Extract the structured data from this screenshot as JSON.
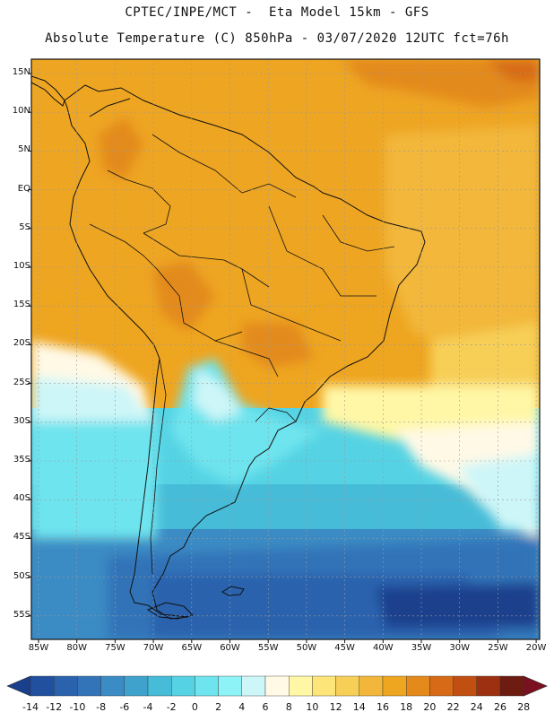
{
  "header": {
    "line1": "CPTEC/INPE/MCT -  Eta Model 15km - GFS",
    "line2": "Absolute Temperature (C) 850hPa - 03/07/2020 12UTC fct=76h"
  },
  "map": {
    "lat_labels": [
      "15N",
      "10N",
      "5N",
      "EQ",
      "5S",
      "10S",
      "15S",
      "20S",
      "25S",
      "30S",
      "35S",
      "40S",
      "45S",
      "50S",
      "55S"
    ],
    "lon_labels": [
      "85W",
      "80W",
      "75W",
      "70W",
      "65W",
      "60W",
      "55W",
      "50W",
      "45W",
      "40W",
      "35W",
      "30W",
      "25W",
      "20W"
    ],
    "colors": {
      "c_m14": "#1a3f8c",
      "c_m12": "#21519e",
      "c_m10": "#2a62ad",
      "c_m8": "#3373b8",
      "c_m6": "#3b8bc4",
      "c_m4": "#3fa2cc",
      "c_m2": "#47bcd8",
      "c_0": "#55d3e4",
      "c_2": "#6ee4ee",
      "c_4": "#8ef3f6",
      "c_6": "#cdf6f8",
      "c_8": "#fff9e6",
      "c_10": "#fff7a6",
      "c_12": "#fde57a",
      "c_14": "#f7cf56",
      "c_16": "#f2b73a",
      "c_18": "#eea520",
      "c_20": "#e38a1b",
      "c_22": "#d76a17",
      "c_24": "#c24f12",
      "c_26": "#9c3010",
      "c_28": "#6e1b12"
    }
  },
  "colorbar": {
    "ticks": [
      "-14",
      "-12",
      "-10",
      "-8",
      "-6",
      "-4",
      "-2",
      "0",
      "2",
      "4",
      "6",
      "8",
      "10",
      "12",
      "14",
      "16",
      "18",
      "20",
      "22",
      "24",
      "26",
      "28"
    ],
    "colors": [
      "#1a3f8c",
      "#21519e",
      "#2a62ad",
      "#3373b8",
      "#3b8bc4",
      "#3fa2cc",
      "#47bcd8",
      "#55d3e4",
      "#6ee4ee",
      "#8ef3f6",
      "#cdf6f8",
      "#fff9e6",
      "#fff7a6",
      "#fde57a",
      "#f7cf56",
      "#f2b73a",
      "#eea520",
      "#e38a1b",
      "#d76a17",
      "#c24f12",
      "#9c3010",
      "#6e1b12",
      "#7a1020"
    ]
  }
}
